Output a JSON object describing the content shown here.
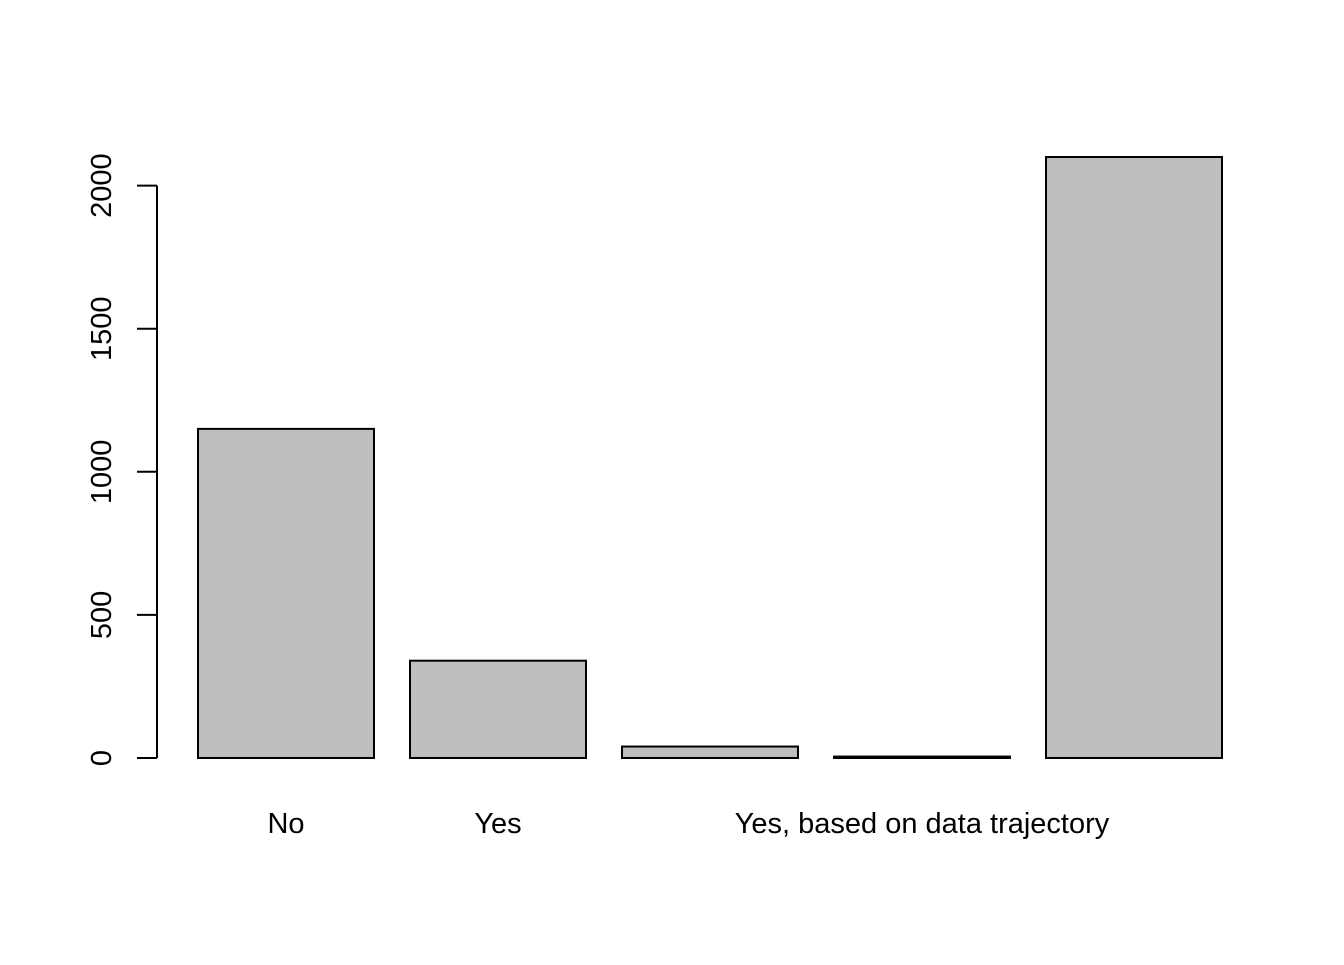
{
  "chart_data": {
    "type": "bar",
    "title": "",
    "xlabel": "",
    "ylabel": "",
    "categories": [
      "No",
      "Yes",
      "",
      "",
      ""
    ],
    "shown_category_labels": [
      "No",
      "Yes",
      "Yes, based on data trajectory"
    ],
    "values": [
      1150,
      340,
      40,
      5,
      2100
    ],
    "ylim": [
      0,
      2100
    ],
    "yticks": [
      "0",
      "500",
      "1000",
      "1500",
      "2000"
    ],
    "bar_fill": "#bebebe",
    "bar_stroke": "#000000",
    "grid": false,
    "legend": "none"
  }
}
